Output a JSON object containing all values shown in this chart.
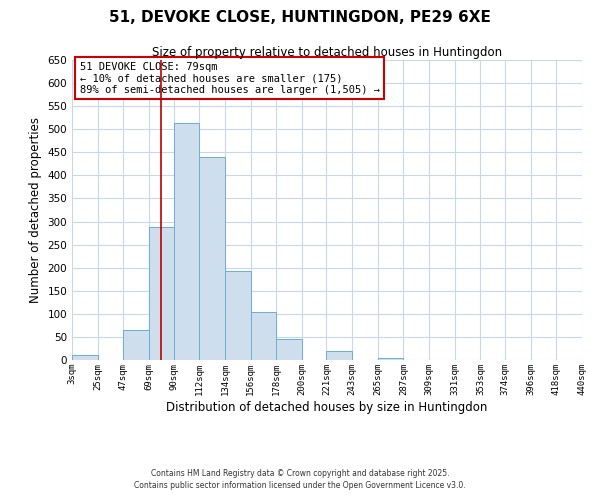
{
  "title": "51, DEVOKE CLOSE, HUNTINGDON, PE29 6XE",
  "subtitle": "Size of property relative to detached houses in Huntingdon",
  "xlabel": "Distribution of detached houses by size in Huntingdon",
  "ylabel": "Number of detached properties",
  "bar_color": "#cfdeed",
  "bar_edge_color": "#6aaed6",
  "bin_edges": [
    3,
    25,
    47,
    69,
    90,
    112,
    134,
    156,
    178,
    200,
    221,
    243,
    265,
    287,
    309,
    331,
    353,
    374,
    396,
    418,
    440
  ],
  "bin_labels": [
    "3sqm",
    "25sqm",
    "47sqm",
    "69sqm",
    "90sqm",
    "112sqm",
    "134sqm",
    "156sqm",
    "178sqm",
    "200sqm",
    "221sqm",
    "243sqm",
    "265sqm",
    "287sqm",
    "309sqm",
    "331sqm",
    "353sqm",
    "374sqm",
    "396sqm",
    "418sqm",
    "440sqm"
  ],
  "values": [
    10,
    0,
    65,
    288,
    513,
    440,
    192,
    105,
    45,
    0,
    20,
    0,
    5,
    0,
    0,
    0,
    0,
    0,
    0,
    0
  ],
  "ylim": [
    0,
    650
  ],
  "yticks": [
    0,
    50,
    100,
    150,
    200,
    250,
    300,
    350,
    400,
    450,
    500,
    550,
    600,
    650
  ],
  "vline_x": 79,
  "vline_color": "#bb0000",
  "annotation_title": "51 DEVOKE CLOSE: 79sqm",
  "annotation_line1": "← 10% of detached houses are smaller (175)",
  "annotation_line2": "89% of semi-detached houses are larger (1,505) →",
  "annotation_box_color": "#ffffff",
  "annotation_box_edge": "#cc0000",
  "footer1": "Contains HM Land Registry data © Crown copyright and database right 2025.",
  "footer2": "Contains public sector information licensed under the Open Government Licence v3.0.",
  "background_color": "#ffffff",
  "grid_color": "#c8d8e8",
  "figsize": [
    6.0,
    5.0
  ],
  "dpi": 100
}
